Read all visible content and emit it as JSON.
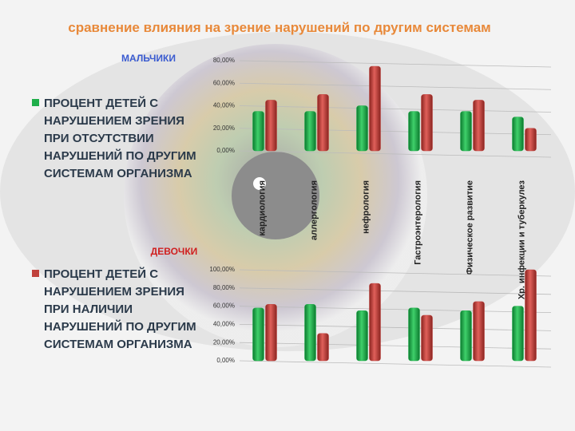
{
  "title": "сравнение влияния на зрение нарушений по другим системам",
  "chart_data": [
    {
      "type": "bar",
      "title": "МАЛЬЧИКИ",
      "categories": [
        "кардиология",
        "аллергология",
        "нефрология",
        "Гастроэнтерология",
        "Физическое развитие",
        "Хр. инфекции и туберкулез"
      ],
      "series": [
        {
          "name": "ПРОЦЕНТ ДЕТЕЙ С НАРУШЕНИЕМ ЗРЕНИЯ ПРИ ОТСУТСТВИИ НАРУШЕНИЙ ПО ДРУГИМ СИСТЕМАМ ОРГАНИЗМА",
          "color": "#1fae4a",
          "values": [
            35,
            35,
            40,
            35,
            35,
            30
          ]
        },
        {
          "name": "ПРОЦЕНТ ДЕТЕЙ С НАРУШЕНИЕМ ЗРЕНИЯ ПРИ НАЛИЧИИ НАРУШЕНИЙ ПО ДРУГИМ СИСТЕМАМ ОРГАНИЗМА",
          "color": "#c0413c",
          "values": [
            45,
            50,
            75,
            50,
            45,
            20
          ]
        }
      ],
      "ylim": [
        0,
        80
      ],
      "yticks": [
        {
          "value": 0,
          "label": "0,00%"
        },
        {
          "value": 20,
          "label": "20,00%"
        },
        {
          "value": 40,
          "label": "40,00%"
        },
        {
          "value": 60,
          "label": "60,00%"
        },
        {
          "value": 80,
          "label": "80,00%"
        }
      ],
      "grid": true
    },
    {
      "type": "bar",
      "title": "ДЕВОЧКИ",
      "series": [
        {
          "color": "#1fae4a",
          "values": [
            58,
            62,
            55,
            58,
            55,
            60
          ]
        },
        {
          "color": "#c0413c",
          "values": [
            62,
            30,
            85,
            50,
            65,
            100
          ]
        }
      ],
      "ylim": [
        0,
        100
      ],
      "yticks": [
        {
          "value": 0,
          "label": "0,00%"
        },
        {
          "value": 20,
          "label": "20,00%"
        },
        {
          "value": 40,
          "label": "40,00%"
        },
        {
          "value": 60,
          "label": "60,00%"
        },
        {
          "value": 80,
          "label": "80,00%"
        },
        {
          "value": 100,
          "label": "100,00%"
        }
      ],
      "grid": true
    }
  ]
}
